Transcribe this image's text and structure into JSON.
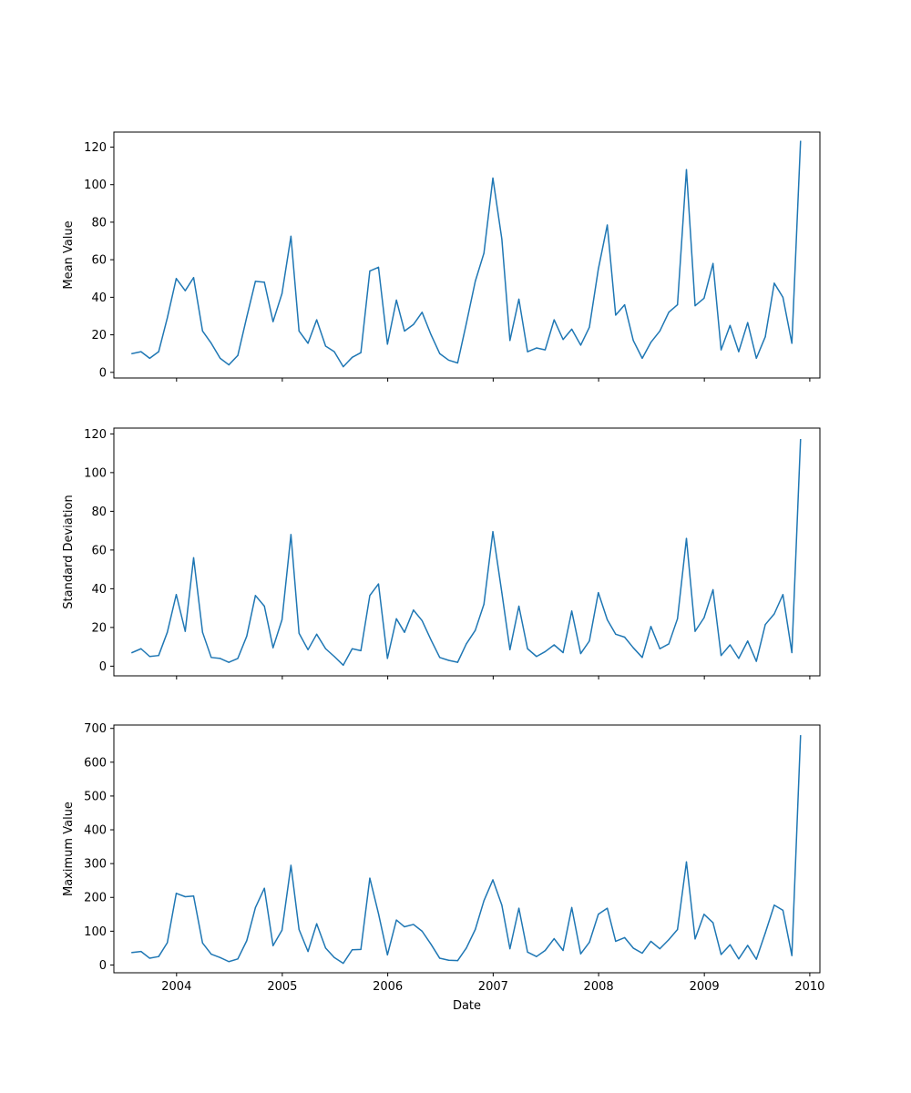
{
  "chart_data": [
    {
      "type": "line",
      "ylabel": "Mean Value",
      "xlabel": "",
      "ylim": [
        -3,
        128
      ],
      "yticks": [
        0,
        20,
        40,
        60,
        80,
        100,
        120
      ],
      "x_tick_labels_visible": false,
      "series": [
        {
          "color": "#1f77b4",
          "x": [
            "2003-07-31",
            "2003-08-31",
            "2003-09-30",
            "2003-10-31",
            "2003-11-30",
            "2003-12-31",
            "2004-01-31",
            "2004-02-29",
            "2004-03-31",
            "2004-04-30",
            "2004-05-31",
            "2004-06-30",
            "2004-07-31",
            "2004-08-31",
            "2004-09-30",
            "2004-10-31",
            "2004-11-30",
            "2004-12-31",
            "2005-01-31",
            "2005-02-28",
            "2005-03-31",
            "2005-04-30",
            "2005-05-31",
            "2005-06-30",
            "2005-07-31",
            "2005-08-31",
            "2005-09-30",
            "2005-10-31",
            "2005-11-30",
            "2005-12-31",
            "2006-01-31",
            "2006-02-28",
            "2006-03-31",
            "2006-04-30",
            "2006-05-31",
            "2006-06-30",
            "2006-07-31",
            "2006-08-31",
            "2006-09-30",
            "2006-10-31",
            "2006-11-30",
            "2006-12-31",
            "2007-01-31",
            "2007-02-28",
            "2007-03-31",
            "2007-04-30",
            "2007-05-31",
            "2007-06-30",
            "2007-07-31",
            "2007-08-31",
            "2007-09-30",
            "2007-10-31",
            "2007-11-30",
            "2007-12-31",
            "2008-01-31",
            "2008-02-29",
            "2008-03-31",
            "2008-04-30",
            "2008-05-31",
            "2008-06-30",
            "2008-07-31",
            "2008-08-31",
            "2008-09-30",
            "2008-10-31",
            "2008-11-30",
            "2008-12-31",
            "2009-01-31",
            "2009-02-28",
            "2009-03-31",
            "2009-04-30",
            "2009-05-31",
            "2009-06-30",
            "2009-07-31",
            "2009-08-31",
            "2009-09-30",
            "2009-10-31",
            "2009-11-30"
          ],
          "y": [
            10,
            11,
            7.5,
            11,
            29,
            50,
            43.5,
            50.5,
            22,
            15.5,
            7.5,
            4,
            9,
            29.5,
            48.5,
            48,
            27,
            42,
            72.5,
            22,
            15.5,
            28,
            14,
            11,
            3,
            8,
            10.5,
            54,
            56,
            15,
            38.5,
            22,
            25.5,
            32,
            20,
            10,
            6.5,
            5,
            26,
            48.5,
            63.5,
            103.5,
            71,
            17,
            39,
            11,
            13,
            12,
            28,
            17.5,
            23,
            14.5,
            24,
            55,
            78.5,
            30.5,
            36,
            17,
            7.5,
            16,
            22,
            32,
            36,
            108,
            35.5,
            39.5,
            58,
            12,
            25,
            11,
            26.5,
            7.5,
            19,
            47.5,
            40,
            15.5,
            123
          ]
        }
      ]
    },
    {
      "type": "line",
      "ylabel": "Standard Deviation",
      "xlabel": "",
      "ylim": [
        -5,
        123
      ],
      "yticks": [
        0,
        20,
        40,
        60,
        80,
        100,
        120
      ],
      "x_tick_labels_visible": false,
      "series": [
        {
          "color": "#1f77b4",
          "x": [
            "2003-07-31",
            "2003-08-31",
            "2003-09-30",
            "2003-10-31",
            "2003-11-30",
            "2003-12-31",
            "2004-01-31",
            "2004-02-29",
            "2004-03-31",
            "2004-04-30",
            "2004-05-31",
            "2004-06-30",
            "2004-07-31",
            "2004-08-31",
            "2004-09-30",
            "2004-10-31",
            "2004-11-30",
            "2004-12-31",
            "2005-01-31",
            "2005-02-28",
            "2005-03-31",
            "2005-04-30",
            "2005-05-31",
            "2005-06-30",
            "2005-07-31",
            "2005-08-31",
            "2005-09-30",
            "2005-10-31",
            "2005-11-30",
            "2005-12-31",
            "2006-01-31",
            "2006-02-28",
            "2006-03-31",
            "2006-04-30",
            "2006-05-31",
            "2006-06-30",
            "2006-07-31",
            "2006-08-31",
            "2006-09-30",
            "2006-10-31",
            "2006-11-30",
            "2006-12-31",
            "2007-01-31",
            "2007-02-28",
            "2007-03-31",
            "2007-04-30",
            "2007-05-31",
            "2007-06-30",
            "2007-07-31",
            "2007-08-31",
            "2007-09-30",
            "2007-10-31",
            "2007-11-30",
            "2007-12-31",
            "2008-01-31",
            "2008-02-29",
            "2008-03-31",
            "2008-04-30",
            "2008-05-31",
            "2008-06-30",
            "2008-07-31",
            "2008-08-31",
            "2008-09-30",
            "2008-10-31",
            "2008-11-30",
            "2008-12-31",
            "2009-01-31",
            "2009-02-28",
            "2009-03-31",
            "2009-04-30",
            "2009-05-31",
            "2009-06-30",
            "2009-07-31",
            "2009-08-31",
            "2009-09-30",
            "2009-10-31",
            "2009-11-30"
          ],
          "y": [
            7,
            9,
            5,
            5.5,
            17.5,
            37,
            18,
            56,
            17.5,
            4.5,
            4,
            2,
            4,
            15.5,
            36.5,
            31,
            9.5,
            24,
            68,
            17,
            8.5,
            16.5,
            9,
            5,
            0.5,
            9,
            8,
            36.5,
            42.5,
            4,
            24.5,
            17.5,
            29,
            23.5,
            13.5,
            4.5,
            3,
            2,
            11.5,
            18.5,
            32,
            69.5,
            38,
            8.5,
            31,
            9,
            5,
            7.5,
            11,
            7,
            28.5,
            6.5,
            13,
            38,
            24,
            16.5,
            15,
            9.5,
            4.5,
            20.5,
            9,
            11.5,
            24.5,
            66,
            18,
            25,
            39.5,
            5.5,
            11,
            4,
            13,
            2.5,
            21.5,
            27,
            37,
            7,
            117
          ]
        }
      ]
    },
    {
      "type": "line",
      "ylabel": "Maximum Value",
      "xlabel": "Date",
      "ylim": [
        -23,
        710
      ],
      "yticks": [
        0,
        100,
        200,
        300,
        400,
        500,
        600,
        700
      ],
      "xticks": [
        "2004",
        "2005",
        "2006",
        "2007",
        "2008",
        "2009",
        "2010"
      ],
      "series": [
        {
          "color": "#1f77b4",
          "x": [
            "2003-07-31",
            "2003-08-31",
            "2003-09-30",
            "2003-10-31",
            "2003-11-30",
            "2003-12-31",
            "2004-01-31",
            "2004-02-29",
            "2004-03-31",
            "2004-04-30",
            "2004-05-31",
            "2004-06-30",
            "2004-07-31",
            "2004-08-31",
            "2004-09-30",
            "2004-10-31",
            "2004-11-30",
            "2004-12-31",
            "2005-01-31",
            "2005-02-28",
            "2005-03-31",
            "2005-04-30",
            "2005-05-31",
            "2005-06-30",
            "2005-07-31",
            "2005-08-31",
            "2005-09-30",
            "2005-10-31",
            "2005-11-30",
            "2005-12-31",
            "2006-01-31",
            "2006-02-28",
            "2006-03-31",
            "2006-04-30",
            "2006-05-31",
            "2006-06-30",
            "2006-07-31",
            "2006-08-31",
            "2006-09-30",
            "2006-10-31",
            "2006-11-30",
            "2006-12-31",
            "2007-01-31",
            "2007-02-28",
            "2007-03-31",
            "2007-04-30",
            "2007-05-31",
            "2007-06-30",
            "2007-07-31",
            "2007-08-31",
            "2007-09-30",
            "2007-10-31",
            "2007-11-30",
            "2007-12-31",
            "2008-01-31",
            "2008-02-29",
            "2008-03-31",
            "2008-04-30",
            "2008-05-31",
            "2008-06-30",
            "2008-07-31",
            "2008-08-31",
            "2008-09-30",
            "2008-10-31",
            "2008-11-30",
            "2008-12-31",
            "2009-01-31",
            "2009-02-28",
            "2009-03-31",
            "2009-04-30",
            "2009-05-31",
            "2009-06-30",
            "2009-07-31",
            "2009-08-31",
            "2009-09-30",
            "2009-10-31",
            "2009-11-30"
          ],
          "y": [
            37,
            40,
            20,
            25,
            66,
            212,
            202,
            204,
            65,
            32,
            22,
            10,
            18,
            72,
            170,
            227,
            57,
            103,
            295,
            105,
            40,
            122,
            50,
            22,
            5,
            45,
            46,
            257,
            152,
            30,
            133,
            113,
            120,
            100,
            61,
            20,
            14,
            13,
            50,
            105,
            190,
            252,
            177,
            48,
            168,
            38,
            25,
            43,
            78,
            43,
            170,
            33,
            67,
            150,
            168,
            70,
            81,
            50,
            35,
            70,
            48,
            75,
            105,
            305,
            77,
            150,
            125,
            31,
            60,
            18,
            58,
            17,
            95,
            177,
            162,
            28,
            678
          ]
        }
      ]
    }
  ]
}
